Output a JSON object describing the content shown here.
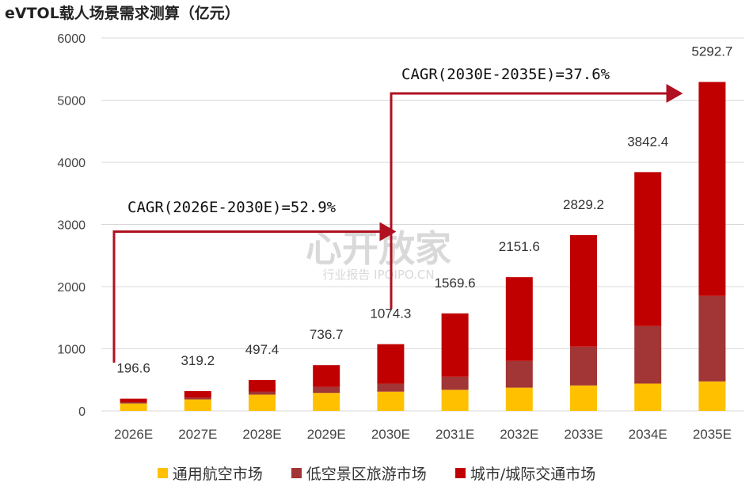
{
  "title": "eVTOL载人场景需求测算（亿元）",
  "watermark": {
    "main": "心开放家",
    "sub": "行业报告 IPOIPO.CN"
  },
  "colors": {
    "s1": "#FFC000",
    "s2": "#A23535",
    "s3": "#C00000",
    "arrow": "#B01020",
    "grid": "#d9d9d9"
  },
  "chart_data": {
    "type": "bar",
    "stacked": true,
    "categories": [
      "2026E",
      "2027E",
      "2028E",
      "2029E",
      "2030E",
      "2031E",
      "2032E",
      "2033E",
      "2034E",
      "2035E"
    ],
    "series": [
      {
        "name": "通用航空市场",
        "values": [
          120,
          185,
          262,
          290,
          310,
          340,
          375,
          410,
          440,
          475
        ]
      },
      {
        "name": "低空景区旅游市场",
        "values": [
          20,
          30,
          50,
          95,
          130,
          210,
          430,
          625,
          925,
          1375
        ]
      },
      {
        "name": "城市/城际交通市场",
        "values": [
          56.6,
          104.2,
          185.4,
          351.7,
          634.3,
          1019.6,
          1346.6,
          1794.2,
          2477.4,
          3442.7
        ]
      }
    ],
    "totals": [
      "196.6",
      "319.2",
      "497.4",
      "736.7",
      "1074.3",
      "1569.6",
      "2151.6",
      "2829.2",
      "3842.4",
      "5292.7"
    ],
    "ylim": [
      0,
      6000
    ],
    "yticks": [
      0,
      1000,
      2000,
      3000,
      4000,
      5000,
      6000
    ],
    "grid": true,
    "legend_position": "bottom",
    "annotations": [
      {
        "text": "CAGR(2026E-2030E)=52.9%",
        "from": "2026E",
        "to": "2030E",
        "level": 3000
      },
      {
        "text": "CAGR(2030E-2035E)=37.6%",
        "from": "2030E",
        "to": "2035E",
        "level": 5300
      }
    ]
  }
}
